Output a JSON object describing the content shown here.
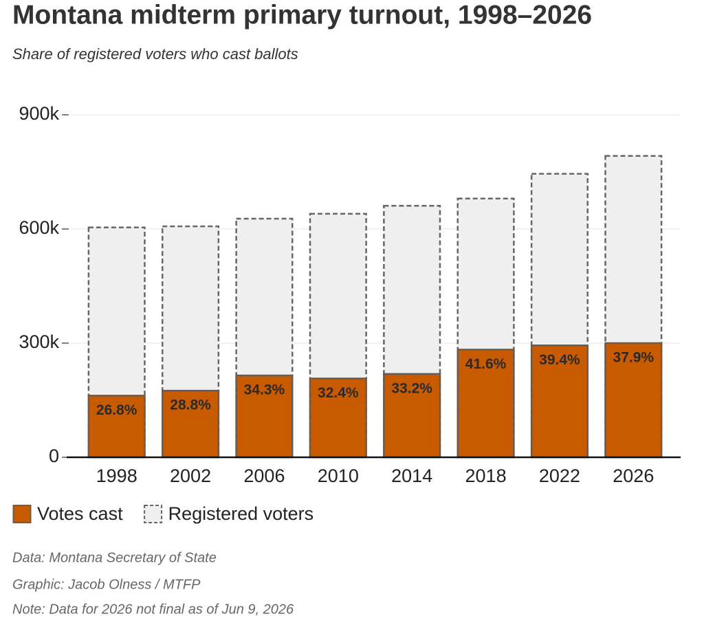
{
  "chart_data": {
    "type": "bar",
    "overlay": true,
    "title": "Montana midterm primary turnout, 1998–2026",
    "subtitle": "Share of registered voters who cast ballots",
    "categories": [
      "1998",
      "2002",
      "2006",
      "2010",
      "2014",
      "2018",
      "2022",
      "2026"
    ],
    "series": [
      {
        "name": "Votes cast",
        "color": "#c85a00",
        "border": "#6b5a4e",
        "dashed": false,
        "values": [
          162000,
          175000,
          215000,
          207000,
          219000,
          283000,
          294000,
          300000
        ],
        "data_labels": [
          "26.8%",
          "28.8%",
          "34.3%",
          "32.4%",
          "33.2%",
          "41.6%",
          "39.4%",
          "37.9%"
        ]
      },
      {
        "name": "Registered voters",
        "color": "#efefef",
        "border": "#666666",
        "dashed": true,
        "values": [
          604000,
          607000,
          627000,
          640000,
          661000,
          680000,
          745000,
          792000
        ]
      }
    ],
    "ylim": [
      0,
      900000
    ],
    "yticks": [
      0,
      {
        "value": 300000,
        "label": "300k"
      },
      {
        "value": 600000,
        "label": "600k"
      },
      {
        "value": 900000,
        "label": "900k"
      }
    ],
    "grid": true,
    "notes": [
      "Data: Montana Secretary of State",
      "Graphic: Jacob Olness / MTFP",
      "Note: Data for 2026 not final as of Jun 9, 2026"
    ]
  }
}
